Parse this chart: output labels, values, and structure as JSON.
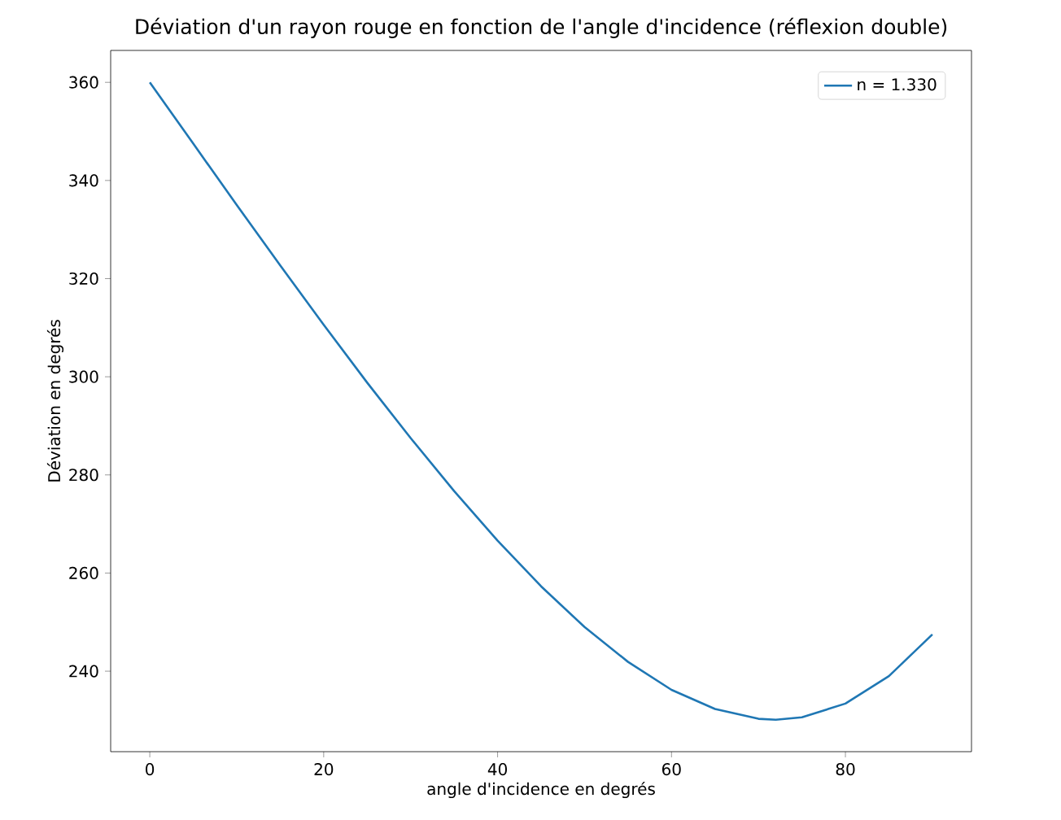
{
  "chart_data": {
    "type": "line",
    "title": "Déviation d'un rayon rouge en fonction de l'angle d'incidence (réflexion double)",
    "xlabel": "angle d'incidence en degrés",
    "ylabel": "Déviation en degrés",
    "xlim": [
      -4.5,
      94.5
    ],
    "ylim": [
      223.6,
      366.5
    ],
    "xticks": [
      0,
      20,
      40,
      60,
      80
    ],
    "yticks": [
      240,
      260,
      280,
      300,
      320,
      340,
      360
    ],
    "legend": "top right",
    "marker": "none",
    "line_style": "solid",
    "series": [
      {
        "name": "n = 1.330",
        "color": "#1f77b4",
        "x": [
          0,
          5,
          10,
          15,
          20,
          25,
          30,
          35,
          40,
          45,
          50,
          55,
          60,
          65,
          70,
          72,
          75,
          80,
          85,
          90
        ],
        "values": [
          360.0,
          347.5,
          335.0,
          322.7,
          310.6,
          298.8,
          287.5,
          276.7,
          266.6,
          257.3,
          249.0,
          241.9,
          236.2,
          232.3,
          230.3,
          230.1,
          230.6,
          233.4,
          239.0,
          247.5
        ]
      }
    ]
  }
}
